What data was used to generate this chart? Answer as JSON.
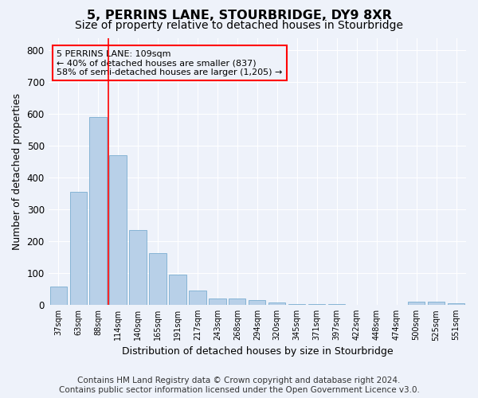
{
  "title": "5, PERRINS LANE, STOURBRIDGE, DY9 8XR",
  "subtitle": "Size of property relative to detached houses in Stourbridge",
  "xlabel": "Distribution of detached houses by size in Stourbridge",
  "ylabel": "Number of detached properties",
  "categories": [
    "37sqm",
    "63sqm",
    "88sqm",
    "114sqm",
    "140sqm",
    "165sqm",
    "191sqm",
    "217sqm",
    "243sqm",
    "268sqm",
    "294sqm",
    "320sqm",
    "345sqm",
    "371sqm",
    "397sqm",
    "422sqm",
    "448sqm",
    "474sqm",
    "500sqm",
    "525sqm",
    "551sqm"
  ],
  "values": [
    57,
    357,
    590,
    470,
    235,
    162,
    96,
    46,
    20,
    20,
    15,
    8,
    4,
    3,
    2,
    1,
    1,
    0,
    10,
    10,
    5
  ],
  "bar_color": "#b8d0e8",
  "bar_edge_color": "#7aadd0",
  "background_color": "#eef2fa",
  "grid_color": "#ffffff",
  "property_label": "5 PERRINS LANE: 109sqm",
  "annotation_line1": "← 40% of detached houses are smaller (837)",
  "annotation_line2": "58% of semi-detached houses are larger (1,205) →",
  "red_line_x": 2.5,
  "ylim": [
    0,
    840
  ],
  "yticks": [
    0,
    100,
    200,
    300,
    400,
    500,
    600,
    700,
    800
  ],
  "footer_line1": "Contains HM Land Registry data © Crown copyright and database right 2024.",
  "footer_line2": "Contains public sector information licensed under the Open Government Licence v3.0.",
  "title_fontsize": 11.5,
  "subtitle_fontsize": 10,
  "xlabel_fontsize": 9,
  "ylabel_fontsize": 9,
  "footer_fontsize": 7.5
}
